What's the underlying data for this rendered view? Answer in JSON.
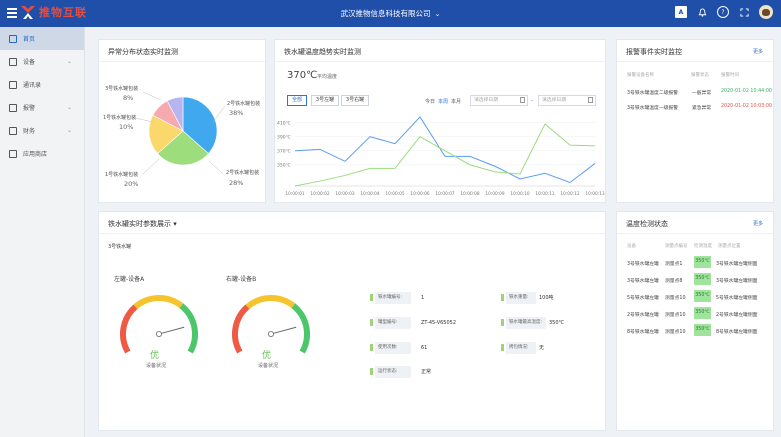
{
  "header": {
    "logo_text": "推物互联",
    "company": "武汉推物信息科技有限公司",
    "icons": [
      "menu-icon",
      "translate-icon",
      "bell-icon",
      "help-icon",
      "fullscreen-icon",
      "avatar"
    ]
  },
  "sidebar": {
    "items": [
      {
        "label": "首页",
        "icon": "home-icon",
        "active": true,
        "has_children": false
      },
      {
        "label": "设备",
        "icon": "device-icon",
        "active": false,
        "has_children": true
      },
      {
        "label": "通讯录",
        "icon": "contacts-icon",
        "active": false,
        "has_children": false
      },
      {
        "label": "报警",
        "icon": "alarm-icon",
        "active": false,
        "has_children": true
      },
      {
        "label": "财务",
        "icon": "finance-icon",
        "active": false,
        "has_children": true
      },
      {
        "label": "应用商店",
        "icon": "store-icon",
        "active": false,
        "has_children": false
      }
    ]
  },
  "anomaly": {
    "title": "异常分布状态实时监测",
    "slices": [
      {
        "label": "2号铁水罐包装",
        "pct": "38%",
        "value": 38,
        "color": "#40a9ed"
      },
      {
        "label": "2号铁水罐包装",
        "pct": "28%",
        "value": 28,
        "color": "#9ddd7c"
      },
      {
        "label": "1号铁水罐包装",
        "pct": "20%",
        "value": 20,
        "color": "#fad86c"
      },
      {
        "label": "1号铁水罐包装",
        "pct": "10%",
        "value": 10,
        "color": "#f7a9b0"
      },
      {
        "label": "3号铁水罐包装",
        "pct": "8%",
        "value": 8,
        "color": "#b5b5f0"
      }
    ]
  },
  "trend": {
    "title": "铁水罐温度趋势实时监测",
    "current_temp": "370℃",
    "current_unit": "平均温度",
    "tabs": [
      "全部",
      "3号左罐",
      "3号右罐"
    ],
    "range_labels": [
      "今日",
      "本周",
      "本月"
    ],
    "date_placeholder_start": "请选择日期",
    "date_placeholder_end": "请选择日期",
    "date_separator": "-"
  },
  "chart_data": {
    "type": "line",
    "x": [
      "10:00:01",
      "10:00:02",
      "10:00:03",
      "10:00:04",
      "10:00:05",
      "10:00:06",
      "10:00:07",
      "10:00:08",
      "10:00:09",
      "10:00:10",
      "10:00:11",
      "10:00:12",
      "10:00:13"
    ],
    "series": [
      {
        "values": [
          370,
          372,
          355,
          390,
          380,
          418,
          362,
          362,
          348,
          330,
          338,
          325,
          352
        ],
        "color": "#5b9cf5"
      },
      {
        "values": [
          320,
          327,
          335,
          345,
          345,
          390,
          370,
          350,
          340,
          337,
          408,
          378,
          377
        ],
        "color": "#9cdb7f"
      }
    ],
    "yticks": [
      "410℃",
      "390℃",
      "370℃",
      "350℃"
    ],
    "ylim": [
      320,
      425
    ],
    "grid": "horizontal"
  },
  "alarm": {
    "title": "报警事件实时监控",
    "more": "更多",
    "headers": [
      "报警设备名称",
      "报警状态",
      "报警时间"
    ],
    "rows": [
      {
        "device": "3号铁水罐温度二级报警",
        "status": "一般异常",
        "time": "2020-01-02 10:44:00",
        "time_color": "green"
      },
      {
        "device": "3号铁水罐温度一级报警",
        "status": "紧急异常",
        "time": "2020-01-02 10:03:00",
        "time_color": "red"
      }
    ]
  },
  "params": {
    "title": "铁水罐实时参数展示",
    "subtitle": "3号铁水罐",
    "gauges": [
      {
        "title": "左罐-设备A",
        "grade": "优",
        "sub": "设备状况"
      },
      {
        "title": "右罐-设备B",
        "grade": "优",
        "sub": "设备状况"
      }
    ],
    "left_fields": [
      {
        "label": "铁水罐编号:",
        "value": "1"
      },
      {
        "label": "罐型编号:",
        "value": "ZT-45-V65052"
      },
      {
        "label": "使用次数:",
        "value": "61"
      },
      {
        "label": "运行状态:",
        "value": "正常"
      }
    ],
    "right_fields": [
      {
        "label": "铁水重量:",
        "value": "100吨"
      },
      {
        "label": "铁水罐最高温度:",
        "value": "350℃"
      },
      {
        "label": "烤包情况:",
        "value": "无"
      }
    ]
  },
  "temp_monitor": {
    "title": "温度检测状态",
    "more": "更多",
    "headers": [
      "设备",
      "测量点编号",
      "检测温度",
      "测量点位置"
    ],
    "rows": [
      {
        "device": "3号铁水罐左罐",
        "point": "测量点1",
        "temp": "350℃",
        "pos": "3号铁水罐左罐侧面"
      },
      {
        "device": "3号铁水罐左罐",
        "point": "测量点8",
        "temp": "350℃",
        "pos": "3号铁水罐左罐侧面"
      },
      {
        "device": "5号铁水罐左罐",
        "point": "测量点10",
        "temp": "350℃",
        "pos": "5号铁水罐左罐侧面"
      },
      {
        "device": "2号铁水罐左罐",
        "point": "测量点10",
        "temp": "350℃",
        "pos": "2号铁水罐左罐侧面"
      },
      {
        "device": "8号铁水罐左罐",
        "point": "测量点10",
        "temp": "350℃",
        "pos": "8号铁水罐左罐侧面"
      }
    ]
  }
}
